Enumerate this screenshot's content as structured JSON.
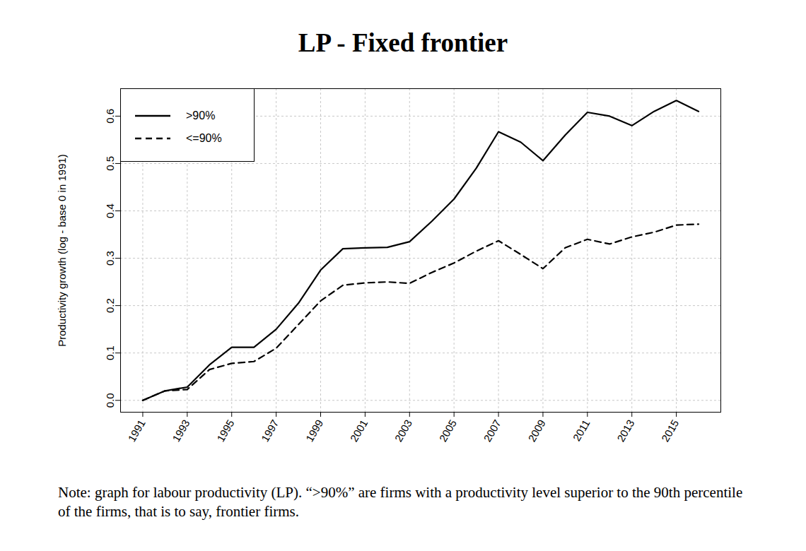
{
  "chart_data": {
    "type": "line",
    "title": "LP - Fixed frontier",
    "y_label": "Productivity growth (log - base 0 in 1991)",
    "note": "Note: graph for labour productivity (LP). “>90%” are firms with a productivity level superior to the 90th percentile of the firms, that is to say, frontier firms.",
    "x": [
      1991,
      1992,
      1993,
      1994,
      1995,
      1996,
      1997,
      1998,
      1999,
      2000,
      2001,
      2002,
      2003,
      2004,
      2005,
      2006,
      2007,
      2008,
      2009,
      2010,
      2011,
      2012,
      2013,
      2014,
      2015,
      2016
    ],
    "series": [
      {
        "name": ">90%",
        "color": "#000000",
        "line_style": "solid",
        "values": [
          0.0,
          0.02,
          0.028,
          0.075,
          0.112,
          0.112,
          0.15,
          0.205,
          0.275,
          0.32,
          0.322,
          0.323,
          0.335,
          0.378,
          0.425,
          0.49,
          0.567,
          0.545,
          0.506,
          0.56,
          0.608,
          0.6,
          0.58,
          0.61,
          0.633,
          0.61
        ]
      },
      {
        "name": "<=90%",
        "color": "#000000",
        "line_style": "dashed",
        "values": [
          0.0,
          0.02,
          0.023,
          0.065,
          0.078,
          0.082,
          0.11,
          0.16,
          0.21,
          0.243,
          0.248,
          0.25,
          0.247,
          0.27,
          0.29,
          0.315,
          0.337,
          0.308,
          0.278,
          0.322,
          0.34,
          0.33,
          0.345,
          0.355,
          0.37,
          0.372
        ]
      }
    ],
    "xlim": [
      1990,
      2017
    ],
    "xticks": [
      1991,
      1993,
      1995,
      1997,
      1999,
      2001,
      2003,
      2005,
      2007,
      2009,
      2011,
      2013,
      2015
    ],
    "ylim": [
      -0.025,
      0.658
    ],
    "yticks": [
      {
        "value": 0,
        "label": "0.0"
      },
      0.1,
      0.2,
      0.3,
      0.4,
      0.5,
      0.6
    ],
    "grid": true,
    "legend": "top-left"
  }
}
